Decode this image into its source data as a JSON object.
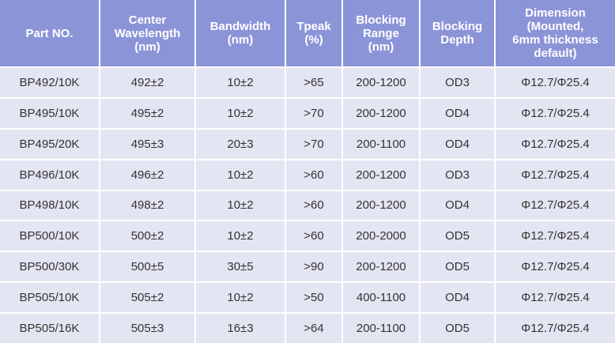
{
  "table": {
    "header": [
      [
        "Part NO."
      ],
      [
        "Center",
        "Wavelength",
        "(nm)"
      ],
      [
        "Bandwidth",
        "(nm)"
      ],
      [
        "Tpeak",
        "(%)"
      ],
      [
        "Blocking",
        "Range",
        "(nm)"
      ],
      [
        "Blocking",
        "Depth"
      ],
      [
        "Dimension",
        "(Mounted,",
        "6mm thickness",
        "default)"
      ]
    ],
    "rows": [
      [
        "BP492/10K",
        "492±2",
        "10±2",
        ">65",
        "200-1200",
        "OD3",
        "Φ12.7/Φ25.4"
      ],
      [
        "BP495/10K",
        "495±2",
        "10±2",
        ">70",
        "200-1200",
        "OD4",
        "Φ12.7/Φ25.4"
      ],
      [
        "BP495/20K",
        "495±3",
        "20±3",
        ">70",
        "200-1100",
        "OD4",
        "Φ12.7/Φ25.4"
      ],
      [
        "BP496/10K",
        "496±2",
        "10±2",
        ">60",
        "200-1200",
        "OD3",
        "Φ12.7/Φ25.4"
      ],
      [
        "BP498/10K",
        "498±2",
        "10±2",
        ">60",
        "200-1200",
        "OD4",
        "Φ12.7/Φ25.4"
      ],
      [
        "BP500/10K",
        "500±2",
        "10±2",
        ">60",
        "200-2000",
        "OD5",
        "Φ12.7/Φ25.4"
      ],
      [
        "BP500/30K",
        "500±5",
        "30±5",
        ">90",
        "200-1200",
        "OD5",
        "Φ12.7/Φ25.4"
      ],
      [
        "BP505/10K",
        "505±2",
        "10±2",
        ">50",
        "400-1100",
        "OD4",
        "Φ12.7/Φ25.4"
      ],
      [
        "BP505/16K",
        "505±3",
        "16±3",
        ">64",
        "200-1100",
        "OD5",
        "Φ12.7/Φ25.4"
      ]
    ]
  }
}
